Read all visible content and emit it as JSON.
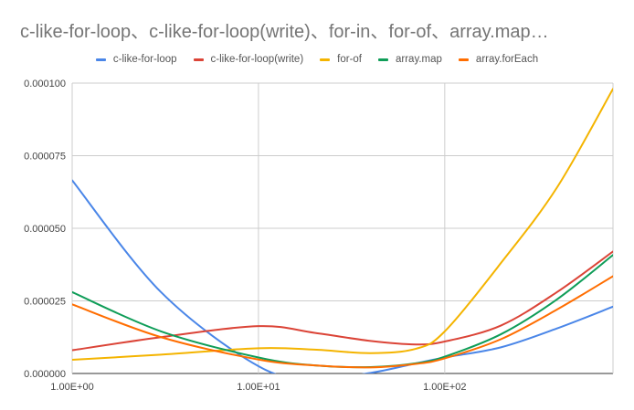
{
  "chart_data": {
    "type": "line",
    "title": "c-like-for-loop、c-like-for-loop(write)、for-in、for-of、array.map…",
    "xlabel": "",
    "ylabel": "",
    "x_scale": "log",
    "xlim": [
      1,
      800
    ],
    "ylim": [
      0,
      0.0001
    ],
    "x_ticks": [
      1,
      10,
      100
    ],
    "x_tick_labels": [
      "1.00E+00",
      "1.00E+01",
      "1.00E+02"
    ],
    "y_ticks": [
      0,
      2.5e-05,
      5e-05,
      7.5e-05,
      0.0001
    ],
    "y_tick_labels": [
      "0.000000",
      "0.000025",
      "0.000050",
      "0.000075",
      "0.000100"
    ],
    "grid": true,
    "legend_position": "top",
    "x": [
      1,
      3,
      10,
      20,
      40,
      70,
      100,
      200,
      400,
      800
    ],
    "series": [
      {
        "name": "c-like-for-loop",
        "color": "#4a86e8",
        "values": [
          6.65e-05,
          2.8e-05,
          2.5e-06,
          -1.8e-06,
          2e-07,
          3.5e-06,
          5.5e-06,
          9e-06,
          1.55e-05,
          2.3e-05
        ]
      },
      {
        "name": "c-like-for-loop(write)",
        "color": "#db4437",
        "values": [
          8e-06,
          1.25e-05,
          1.63e-05,
          1.4e-05,
          1.12e-05,
          1e-05,
          1.1e-05,
          1.65e-05,
          2.8e-05,
          4.2e-05
        ]
      },
      {
        "name": "for-of",
        "color": "#f4b400",
        "values": [
          4.7e-06,
          6.5e-06,
          8.7e-06,
          8.2e-06,
          7e-06,
          8.5e-06,
          1.45e-05,
          3.8e-05,
          6.4e-05,
          9.8e-05
        ]
      },
      {
        "name": "array.map",
        "color": "#0f9d58",
        "values": [
          2.8e-05,
          1.45e-05,
          5.5e-06,
          2.8e-06,
          2.2e-06,
          3.5e-06,
          5.8e-06,
          1.35e-05,
          2.55e-05,
          4.08e-05
        ]
      },
      {
        "name": "array.forEach",
        "color": "#ff6d00",
        "values": [
          2.38e-05,
          1.25e-05,
          4.8e-06,
          2.8e-06,
          2.1e-06,
          3.3e-06,
          5.2e-06,
          1.18e-05,
          2.2e-05,
          3.35e-05
        ]
      }
    ]
  }
}
